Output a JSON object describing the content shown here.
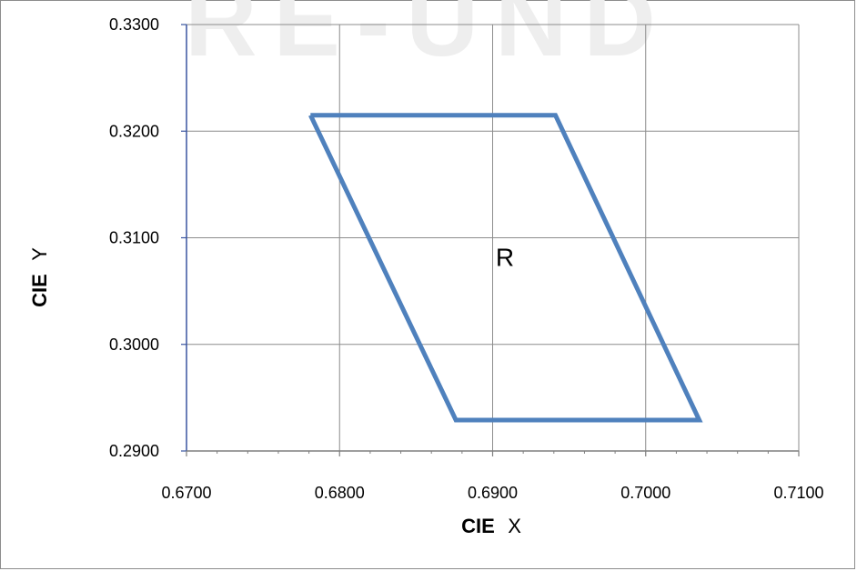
{
  "watermark": "RE-UND",
  "chart_data": {
    "type": "line",
    "title": "",
    "xlabel": {
      "bold": "CIE",
      "plain": "X"
    },
    "ylabel": {
      "bold": "CIE",
      "plain": "Y"
    },
    "xlim": [
      0.67,
      0.71
    ],
    "ylim": [
      0.29,
      0.33
    ],
    "xticks": [
      "0.6700",
      "0.6800",
      "0.6900",
      "0.7000",
      "0.7100"
    ],
    "yticks": [
      "0.2900",
      "0.3000",
      "0.3100",
      "0.3200",
      "0.3300"
    ],
    "grid": true,
    "series": [
      {
        "color": "#4f81bd",
        "x": [
          0.6781,
          0.6941,
          0.7035,
          0.6876,
          0.6781
        ],
        "y": [
          0.3215,
          0.3215,
          0.2929,
          0.2929,
          0.3215
        ]
      }
    ],
    "annotations": [
      {
        "text": "R",
        "x": 0.6908,
        "y": 0.3082
      }
    ]
  }
}
